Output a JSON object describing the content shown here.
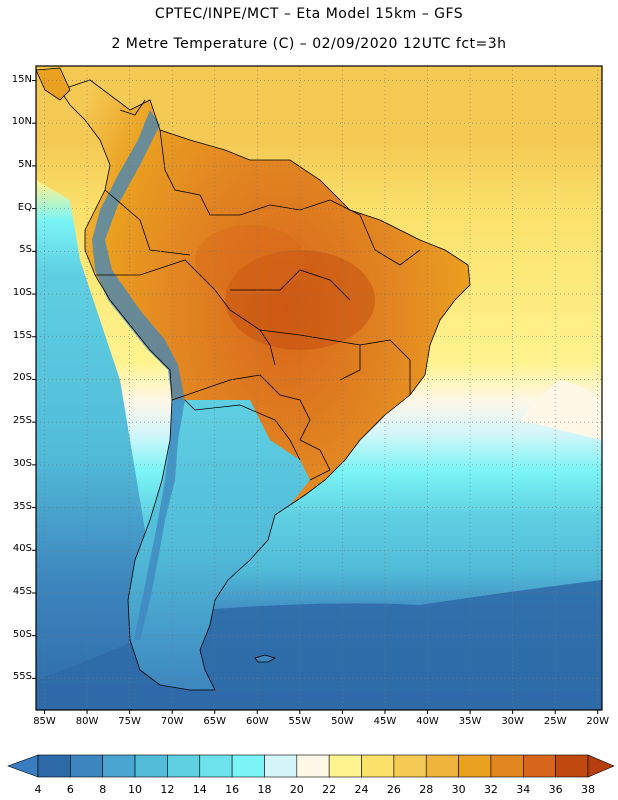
{
  "header": {
    "line1": "CPTEC/INPE/MCT –  Eta Model 15km – GFS",
    "line2": "2 Metre Temperature (C) – 02/09/2020 12UTC fct=3h"
  },
  "map": {
    "region": "South America",
    "lat_labels": [
      "15N",
      "10N",
      "5N",
      "EQ",
      "5S",
      "10S",
      "15S",
      "20S",
      "25S",
      "30S",
      "35S",
      "40S",
      "45S",
      "50S",
      "55S"
    ],
    "lon_labels": [
      "85W",
      "80W",
      "75W",
      "70W",
      "65W",
      "60W",
      "55W",
      "50W",
      "45W",
      "40W",
      "35W",
      "30W",
      "25W",
      "20W"
    ]
  },
  "colorbar": {
    "labels": [
      "4",
      "6",
      "8",
      "10",
      "12",
      "14",
      "16",
      "18",
      "20",
      "22",
      "24",
      "26",
      "28",
      "30",
      "32",
      "34",
      "36",
      "38"
    ],
    "colors": [
      "#2e6aa8",
      "#3d86bf",
      "#4aa6d0",
      "#52bcd9",
      "#5fcfe2",
      "#6de2ec",
      "#7af4f6",
      "#d4f6fa",
      "#fff7e8",
      "#fff38f",
      "#fbe06a",
      "#f4ca55",
      "#eeb43c",
      "#eaa020",
      "#e28622",
      "#d8661a",
      "#c04a0e"
    ],
    "low_arrow_color": "#3a7cc0",
    "high_arrow_color": "#b83e10"
  },
  "palette": {
    "ocean_deep": "#2e6aa8",
    "ocean_mid": "#3d86bf",
    "ocean_cyan": "#5fcfe2",
    "ocean_light": "#7ae8f0",
    "ocean_warm": "#fbe06a",
    "ocean_hot": "#f4ca55",
    "land_hot": "#d8661a",
    "land_warm": "#eaa020",
    "andes": "#52bcd9",
    "patagonia": "#3d86bf",
    "border": "#000000"
  }
}
